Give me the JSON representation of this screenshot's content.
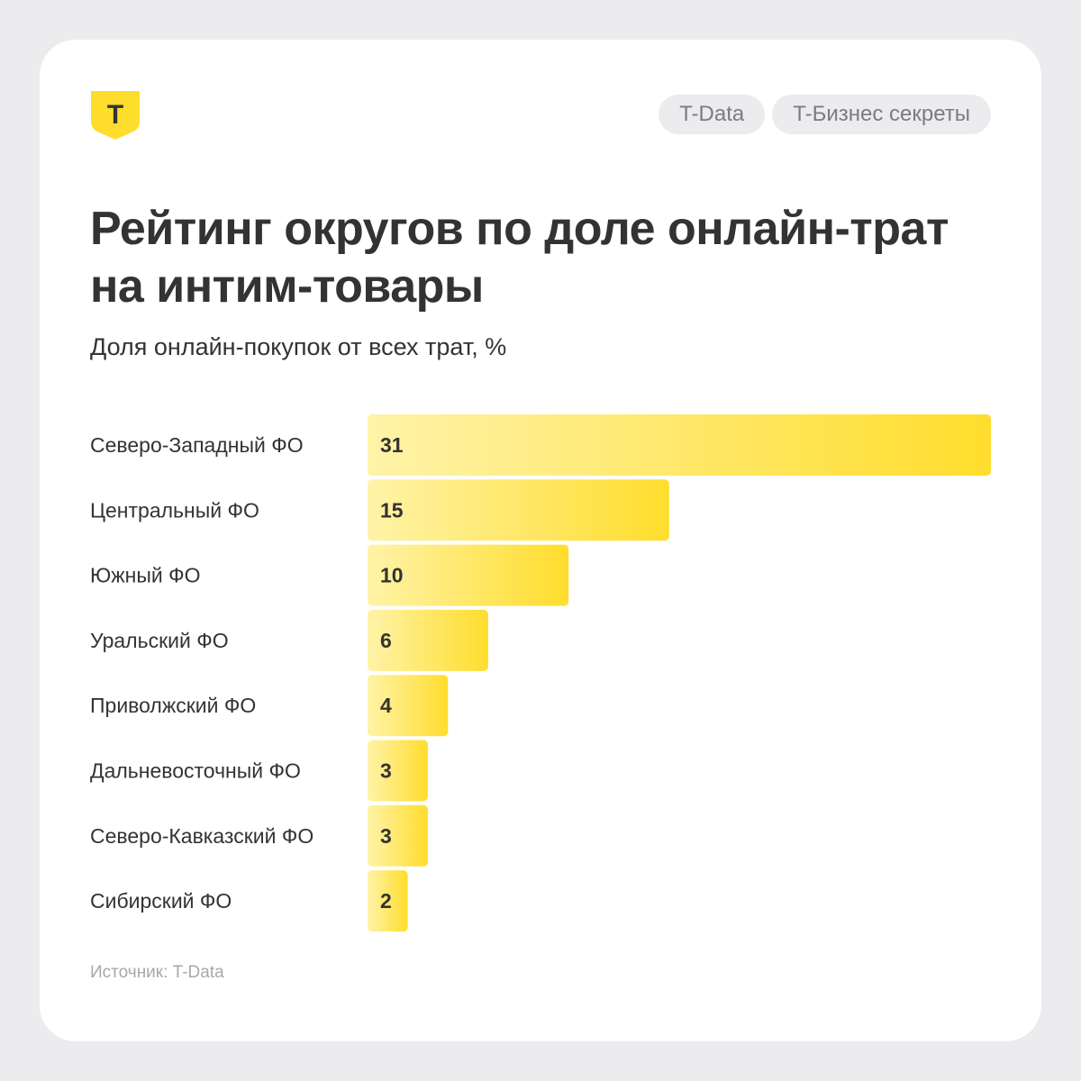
{
  "header": {
    "tags": [
      "T-Data",
      "T-Бизнес секреты"
    ]
  },
  "logo": {
    "letter": "T",
    "color": "#ffdd2d"
  },
  "colors": {
    "bar_start": "#fff3a8",
    "bar_end": "#ffdd2d",
    "text": "#333333"
  },
  "chart_data": {
    "type": "bar",
    "orientation": "horizontal",
    "title": "Рейтинг округов по доле онлайн-трат на интим-товары",
    "subtitle": "Доля онлайн-покупок от всех трат, %",
    "categories": [
      "Северо-Западный ФО",
      "Центральный ФО",
      "Южный ФО",
      "Уральский ФО",
      "Приволжский ФО",
      "Дальневосточный ФО",
      "Северо-Кавказский ФО",
      "Сибирский ФО"
    ],
    "values": [
      31,
      15,
      10,
      6,
      4,
      3,
      3,
      2
    ],
    "xlim": [
      0,
      31
    ],
    "grid": false,
    "data_labels": true
  },
  "footer": {
    "source": "Источник: T-Data"
  }
}
